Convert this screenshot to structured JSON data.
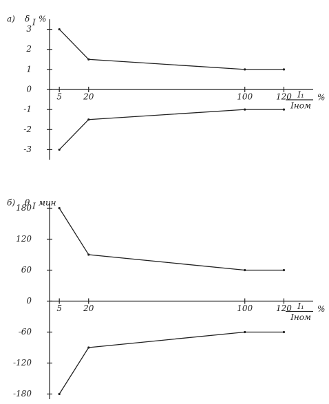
{
  "chart_data": [
    {
      "type": "line",
      "panel": "а)",
      "ylabel": "δ",
      "ylabel_sub": "I",
      "yunit": "%",
      "xlabel_num": "I₁",
      "xlabel_den": "Iном",
      "xunit": "%",
      "x": [
        5,
        20,
        100,
        120
      ],
      "series": [
        {
          "color": "#222222",
          "values": [
            3,
            1.5,
            1.0,
            1.0
          ]
        },
        {
          "color": "#222222",
          "values": [
            -3,
            -1.5,
            -1.0,
            -1.0
          ]
        }
      ],
      "xlim": [
        0,
        135
      ],
      "xticks": [
        5,
        20,
        100,
        120
      ],
      "ylim": [
        -3.5,
        3.5
      ],
      "yticks": [
        3,
        2,
        1,
        0,
        -1,
        -2,
        -3
      ]
    },
    {
      "type": "line",
      "panel": "б)",
      "ylabel": "θ",
      "ylabel_sub": "I",
      "yunit": "мин",
      "xlabel_num": "I₁",
      "xlabel_den": "Iном",
      "xunit": "%",
      "x": [
        5,
        20,
        100,
        120
      ],
      "series": [
        {
          "color": "#222222",
          "values": [
            180,
            90,
            60,
            60
          ]
        },
        {
          "color": "#222222",
          "values": [
            -180,
            -90,
            -60,
            -60
          ]
        }
      ],
      "xlim": [
        0,
        135
      ],
      "xticks": [
        5,
        20,
        100,
        120
      ],
      "ylim": [
        -190,
        190
      ],
      "yticks": [
        180,
        120,
        60,
        0,
        -60,
        -120,
        -180
      ]
    }
  ]
}
